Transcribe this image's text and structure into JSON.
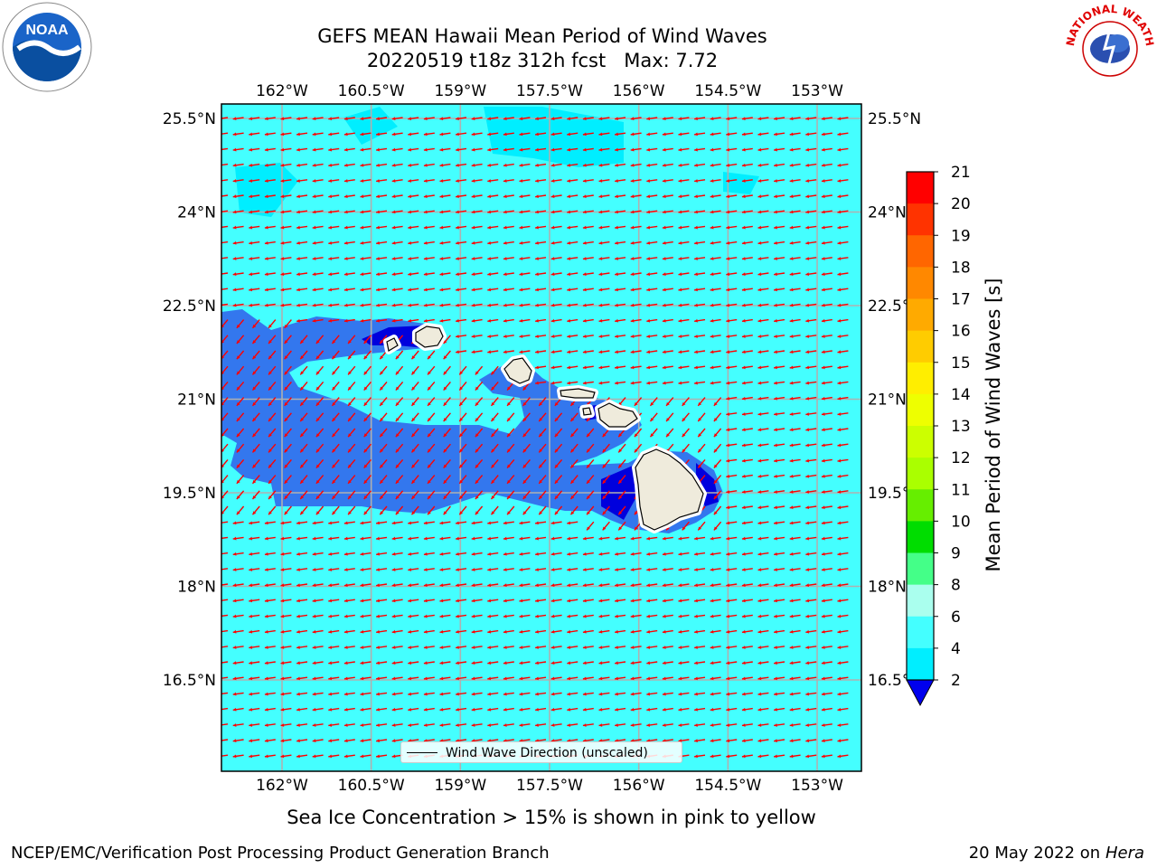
{
  "title": {
    "line1": "GEFS MEAN Hawaii Mean Period of Wind Waves",
    "line2": "20220519 t18z 312h fcst   Max: 7.72"
  },
  "logos": {
    "left": {
      "icon": "noaa-logo",
      "text": "NOAA"
    },
    "right": {
      "icon": "national-weather-service-logo",
      "text": "NATIONAL WEATHER SERVICE"
    }
  },
  "axes": {
    "lon_labels": [
      "162°W",
      "160.5°W",
      "159°W",
      "157.5°W",
      "156°W",
      "154.5°W",
      "153°W"
    ],
    "lat_labels": [
      "25.5°N",
      "24°N",
      "22.5°N",
      "21°N",
      "19.5°N",
      "18°N",
      "16.5°N"
    ],
    "lon_values": [
      -162,
      -160.5,
      -159,
      -157.5,
      -156,
      -154.5,
      -153
    ],
    "lat_values": [
      25.5,
      24,
      22.5,
      21,
      19.5,
      18,
      16.5
    ],
    "lon_range": [
      -163,
      -152.25
    ],
    "lat_range": [
      14.9,
      25.7
    ],
    "gridlines": true
  },
  "colorbar": {
    "label": "Mean Period of Wind Waves [s]",
    "ticks": [
      "21",
      "20",
      "19",
      "18",
      "17",
      "16",
      "15",
      "14",
      "13",
      "12",
      "11",
      "10",
      "9",
      "8",
      "6",
      "4",
      "2"
    ],
    "colors": [
      "#ff0000",
      "#ff3300",
      "#ff6600",
      "#ff8800",
      "#ffaa00",
      "#ffcc00",
      "#ffee00",
      "#eeff00",
      "#ccff00",
      "#aaff00",
      "#66ee00",
      "#00dd00",
      "#44ff88",
      "#aaffee",
      "#44ffff",
      "#00eeff",
      "#0088ff",
      "#0000ee"
    ],
    "extend": "min"
  },
  "field": {
    "max_value": "7.72",
    "background_color": "#44ffff",
    "low_color": "#3377ee",
    "lowest_color": "#0000dd",
    "light_color": "#00eeff",
    "vector_color": "#ff0000",
    "land_color": "#efebdc"
  },
  "legend": {
    "text": "Wind Wave Direction (unscaled)"
  },
  "footer": {
    "note": "Sea Ice Concentration > 15% is shown in pink to yellow",
    "credit_left": "NCEP/EMC/Verification Post Processing Product Generation Branch",
    "date": "20 May 2022 on",
    "machine": "Hera"
  }
}
